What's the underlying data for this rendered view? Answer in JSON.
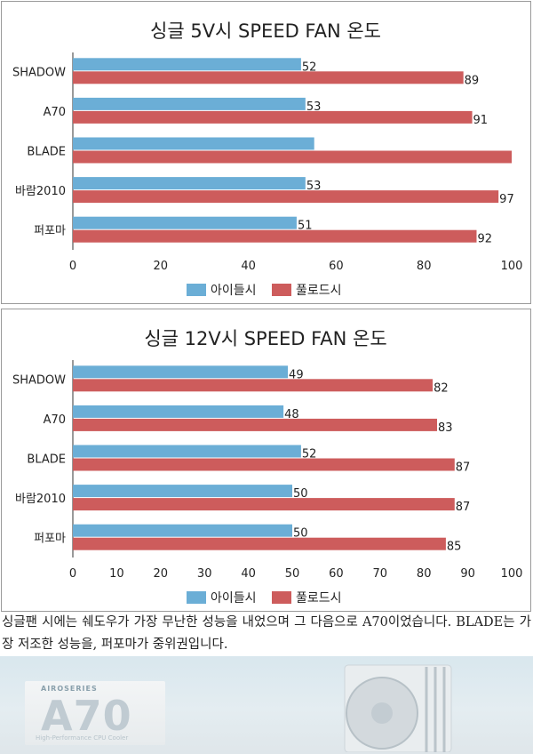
{
  "chart_data": [
    {
      "type": "bar",
      "orientation": "horizontal",
      "title": "싱글 5V시 SPEED FAN 온도",
      "categories": [
        "SHADOW",
        "A70",
        "BLADE",
        "바람2010",
        "퍼포마"
      ],
      "series": [
        {
          "name": "아이들시",
          "color": "#6baed6",
          "values": [
            52,
            53,
            55,
            53,
            51
          ],
          "labels": [
            "52",
            "53",
            "",
            "53",
            "51"
          ]
        },
        {
          "name": "풀로드시",
          "color": "#cd5c5c",
          "values": [
            89,
            91,
            100,
            97,
            92
          ],
          "labels": [
            "89",
            "91",
            "",
            "97",
            "92"
          ]
        }
      ],
      "xlim": [
        0,
        100
      ],
      "xticks": [
        "0",
        "20",
        "40",
        "60",
        "80",
        "100"
      ],
      "legend": "bottom"
    },
    {
      "type": "bar",
      "orientation": "horizontal",
      "title": "싱글 12V시 SPEED FAN 온도",
      "categories": [
        "SHADOW",
        "A70",
        "BLADE",
        "바람2010",
        "퍼포마"
      ],
      "series": [
        {
          "name": "아이들시",
          "color": "#6baed6",
          "values": [
            49,
            48,
            52,
            50,
            50
          ],
          "labels": [
            "49",
            "48",
            "52",
            "50",
            "50"
          ]
        },
        {
          "name": "풀로드시",
          "color": "#cd5c5c",
          "values": [
            82,
            83,
            87,
            87,
            85
          ],
          "labels": [
            "82",
            "83",
            "87",
            "87",
            "85"
          ]
        }
      ],
      "xlim": [
        0,
        100
      ],
      "xticks": [
        "0",
        "10",
        "20",
        "30",
        "40",
        "50",
        "60",
        "70",
        "80",
        "90",
        "100"
      ],
      "legend": "bottom"
    }
  ],
  "caption": "싱글팬 시에는 쉐도우가 가장 무난한 성능을 내었으며 그 다음으로 A70이었습니다. BLADE는 가장 저조한 성능을, 퍼포마가 중위권입니다.",
  "image": {
    "series_label": "AIROSERIES",
    "model": "A70",
    "subtitle": "High-Performance CPU Cooler",
    "description": "product banner with cooler photo"
  }
}
